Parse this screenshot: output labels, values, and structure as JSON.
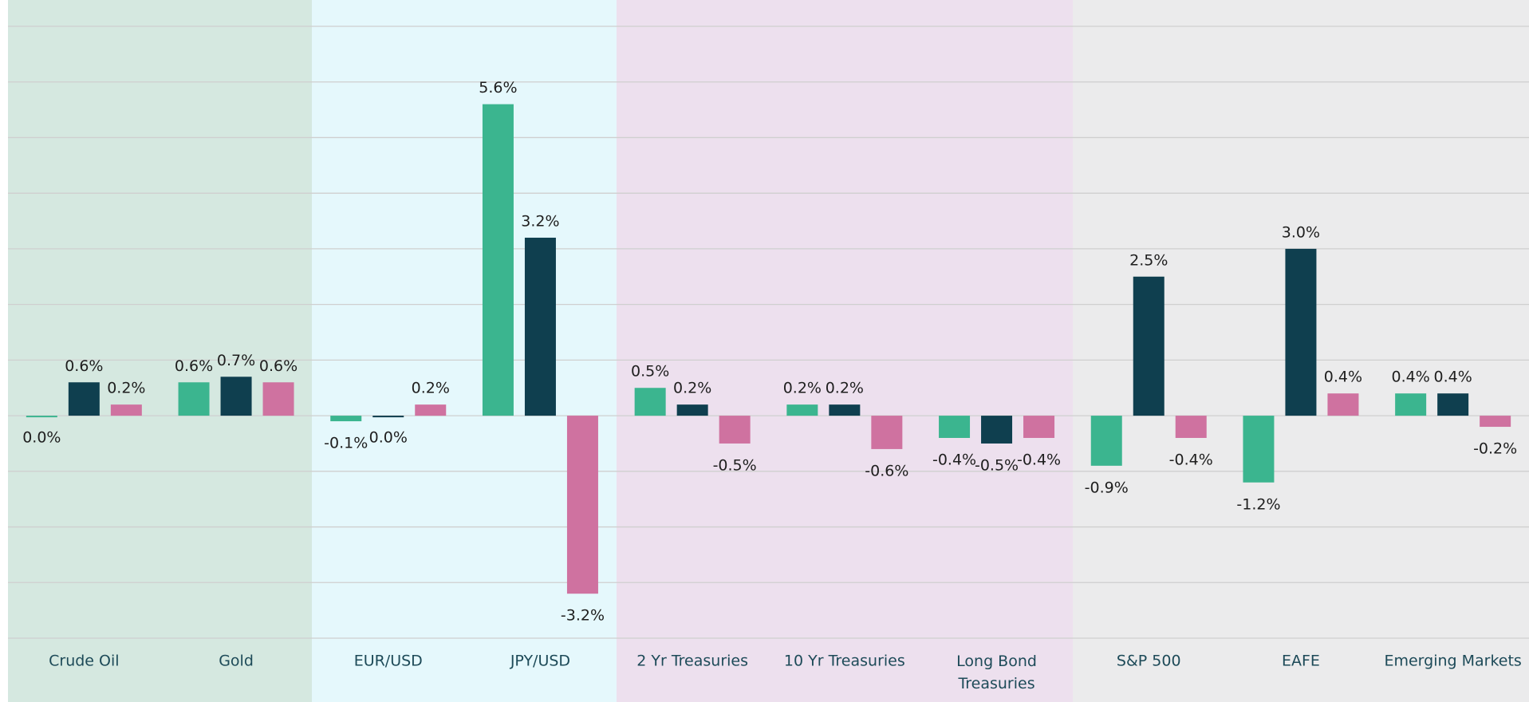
{
  "chart_data": {
    "type": "bar",
    "categories": [
      "Crude Oil",
      "Gold",
      "EUR/USD",
      "JPY/USD",
      "2 Yr Treasuries",
      "10 Yr Treasuries",
      "Long Bond Treasuries",
      "S&P 500",
      "EAFE",
      "Emerging Markets"
    ],
    "series": [
      {
        "color": "#3bb58f",
        "values": [
          0.0,
          0.6,
          -0.1,
          5.6,
          0.5,
          0.2,
          -0.4,
          -0.9,
          -1.2,
          0.4
        ],
        "value_labels": [
          "0.0%",
          "0.6%",
          "-0.1%",
          "5.6%",
          "0.5%",
          "0.2%",
          "-0.4%",
          "-0.9%",
          "-1.2%",
          "0.4%"
        ]
      },
      {
        "color": "#0f3f4f",
        "values": [
          0.6,
          0.7,
          0.0,
          3.2,
          0.2,
          0.2,
          -0.5,
          2.5,
          3.0,
          0.4
        ],
        "value_labels": [
          "0.6%",
          "0.7%",
          "0.0%",
          "3.2%",
          "0.2%",
          "0.2%",
          "-0.5%",
          "2.5%",
          "3.0%",
          "0.4%"
        ]
      },
      {
        "color": "#cf72a0",
        "values": [
          0.2,
          0.6,
          0.2,
          -3.2,
          -0.5,
          -0.6,
          -0.4,
          -0.4,
          0.4,
          -0.2
        ],
        "value_labels": [
          "0.2%",
          "0.6%",
          "0.2%",
          "-3.2%",
          "-0.5%",
          "-0.6%",
          "-0.4%",
          "-0.4%",
          "0.4%",
          "-0.2%"
        ]
      }
    ],
    "ylim": [
      -4,
      7
    ],
    "yticks": [
      -4,
      -3,
      -2,
      -1,
      0,
      1,
      2,
      3,
      4,
      5,
      6,
      7
    ],
    "grid": true
  }
}
